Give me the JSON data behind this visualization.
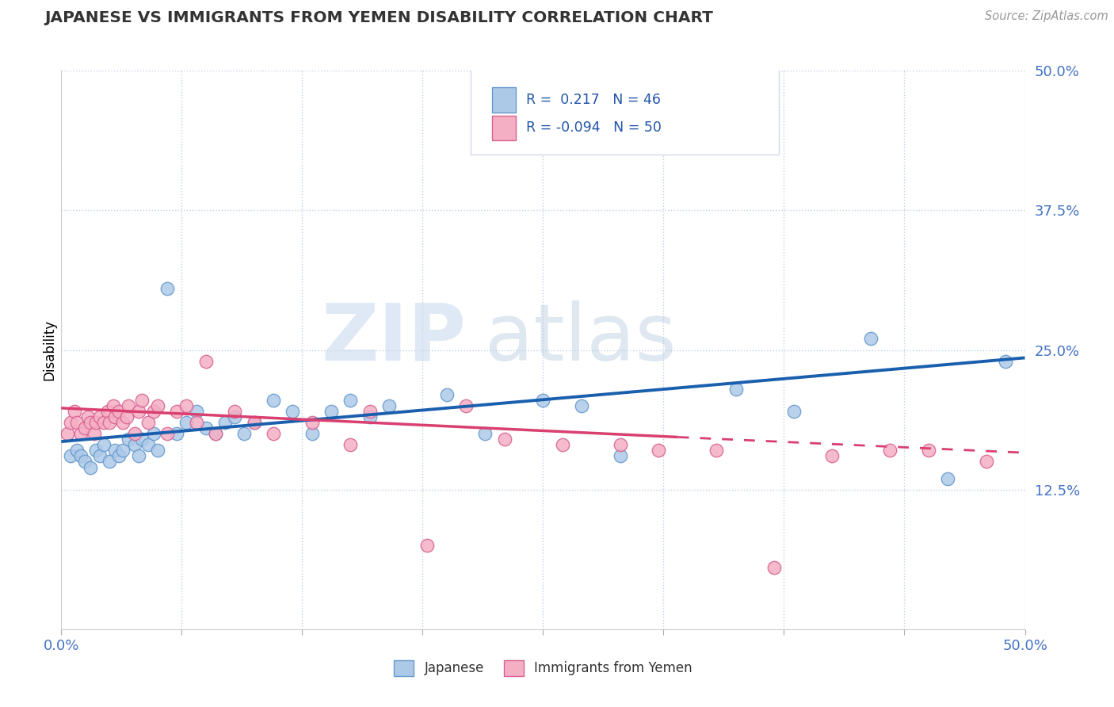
{
  "title": "JAPANESE VS IMMIGRANTS FROM YEMEN DISABILITY CORRELATION CHART",
  "source": "Source: ZipAtlas.com",
  "ylabel": "Disability",
  "xlim": [
    0.0,
    0.5
  ],
  "ylim": [
    0.0,
    0.5
  ],
  "yticks_right": [
    0.125,
    0.25,
    0.375,
    0.5
  ],
  "ytick_labels_right": [
    "12.5%",
    "25.0%",
    "37.5%",
    "50.0%"
  ],
  "japanese_color": "#adc9e8",
  "japanese_edge": "#6699cc",
  "yemen_color": "#f4afc4",
  "yemen_edge": "#d96090",
  "line_blue": "#1a5fad",
  "line_pink": "#d94070",
  "R_japanese": 0.217,
  "N_japanese": 46,
  "R_yemen": -0.094,
  "N_yemen": 50,
  "watermark_zip": "ZIP",
  "watermark_atlas": "atlas",
  "background_color": "#ffffff",
  "grid_color": "#c0cfe0",
  "japanese_x": [
    0.005,
    0.008,
    0.01,
    0.012,
    0.015,
    0.018,
    0.02,
    0.022,
    0.025,
    0.028,
    0.03,
    0.032,
    0.035,
    0.038,
    0.04,
    0.042,
    0.045,
    0.048,
    0.05,
    0.055,
    0.06,
    0.065,
    0.07,
    0.075,
    0.08,
    0.085,
    0.09,
    0.095,
    0.1,
    0.11,
    0.12,
    0.13,
    0.14,
    0.15,
    0.16,
    0.17,
    0.2,
    0.22,
    0.25,
    0.27,
    0.29,
    0.35,
    0.38,
    0.42,
    0.46,
    0.49
  ],
  "japanese_y": [
    0.155,
    0.16,
    0.155,
    0.15,
    0.145,
    0.16,
    0.155,
    0.165,
    0.15,
    0.16,
    0.155,
    0.16,
    0.17,
    0.165,
    0.155,
    0.17,
    0.165,
    0.175,
    0.16,
    0.305,
    0.175,
    0.185,
    0.195,
    0.18,
    0.175,
    0.185,
    0.19,
    0.175,
    0.185,
    0.205,
    0.195,
    0.175,
    0.195,
    0.205,
    0.19,
    0.2,
    0.21,
    0.175,
    0.205,
    0.2,
    0.155,
    0.215,
    0.195,
    0.26,
    0.135,
    0.24
  ],
  "yemen_x": [
    0.003,
    0.005,
    0.007,
    0.008,
    0.01,
    0.012,
    0.014,
    0.015,
    0.017,
    0.018,
    0.02,
    0.022,
    0.024,
    0.025,
    0.027,
    0.028,
    0.03,
    0.032,
    0.034,
    0.035,
    0.038,
    0.04,
    0.042,
    0.045,
    0.048,
    0.05,
    0.055,
    0.06,
    0.065,
    0.07,
    0.075,
    0.08,
    0.09,
    0.1,
    0.11,
    0.13,
    0.15,
    0.16,
    0.19,
    0.21,
    0.23,
    0.26,
    0.29,
    0.31,
    0.34,
    0.37,
    0.4,
    0.43,
    0.45,
    0.48
  ],
  "yemen_y": [
    0.175,
    0.185,
    0.195,
    0.185,
    0.175,
    0.18,
    0.19,
    0.185,
    0.175,
    0.185,
    0.19,
    0.185,
    0.195,
    0.185,
    0.2,
    0.19,
    0.195,
    0.185,
    0.19,
    0.2,
    0.175,
    0.195,
    0.205,
    0.185,
    0.195,
    0.2,
    0.175,
    0.195,
    0.2,
    0.185,
    0.24,
    0.175,
    0.195,
    0.185,
    0.175,
    0.185,
    0.165,
    0.195,
    0.075,
    0.2,
    0.17,
    0.165,
    0.165,
    0.16,
    0.16,
    0.055,
    0.155,
    0.16,
    0.16,
    0.15
  ],
  "trend_blue_x0": 0.0,
  "trend_blue_y0": 0.168,
  "trend_blue_x1": 0.5,
  "trend_blue_y1": 0.243,
  "trend_pink_solid_x0": 0.0,
  "trend_pink_solid_y0": 0.198,
  "trend_pink_solid_x1": 0.32,
  "trend_pink_solid_y1": 0.172,
  "trend_pink_dash_x0": 0.32,
  "trend_pink_dash_y0": 0.172,
  "trend_pink_dash_x1": 0.5,
  "trend_pink_dash_y1": 0.158
}
